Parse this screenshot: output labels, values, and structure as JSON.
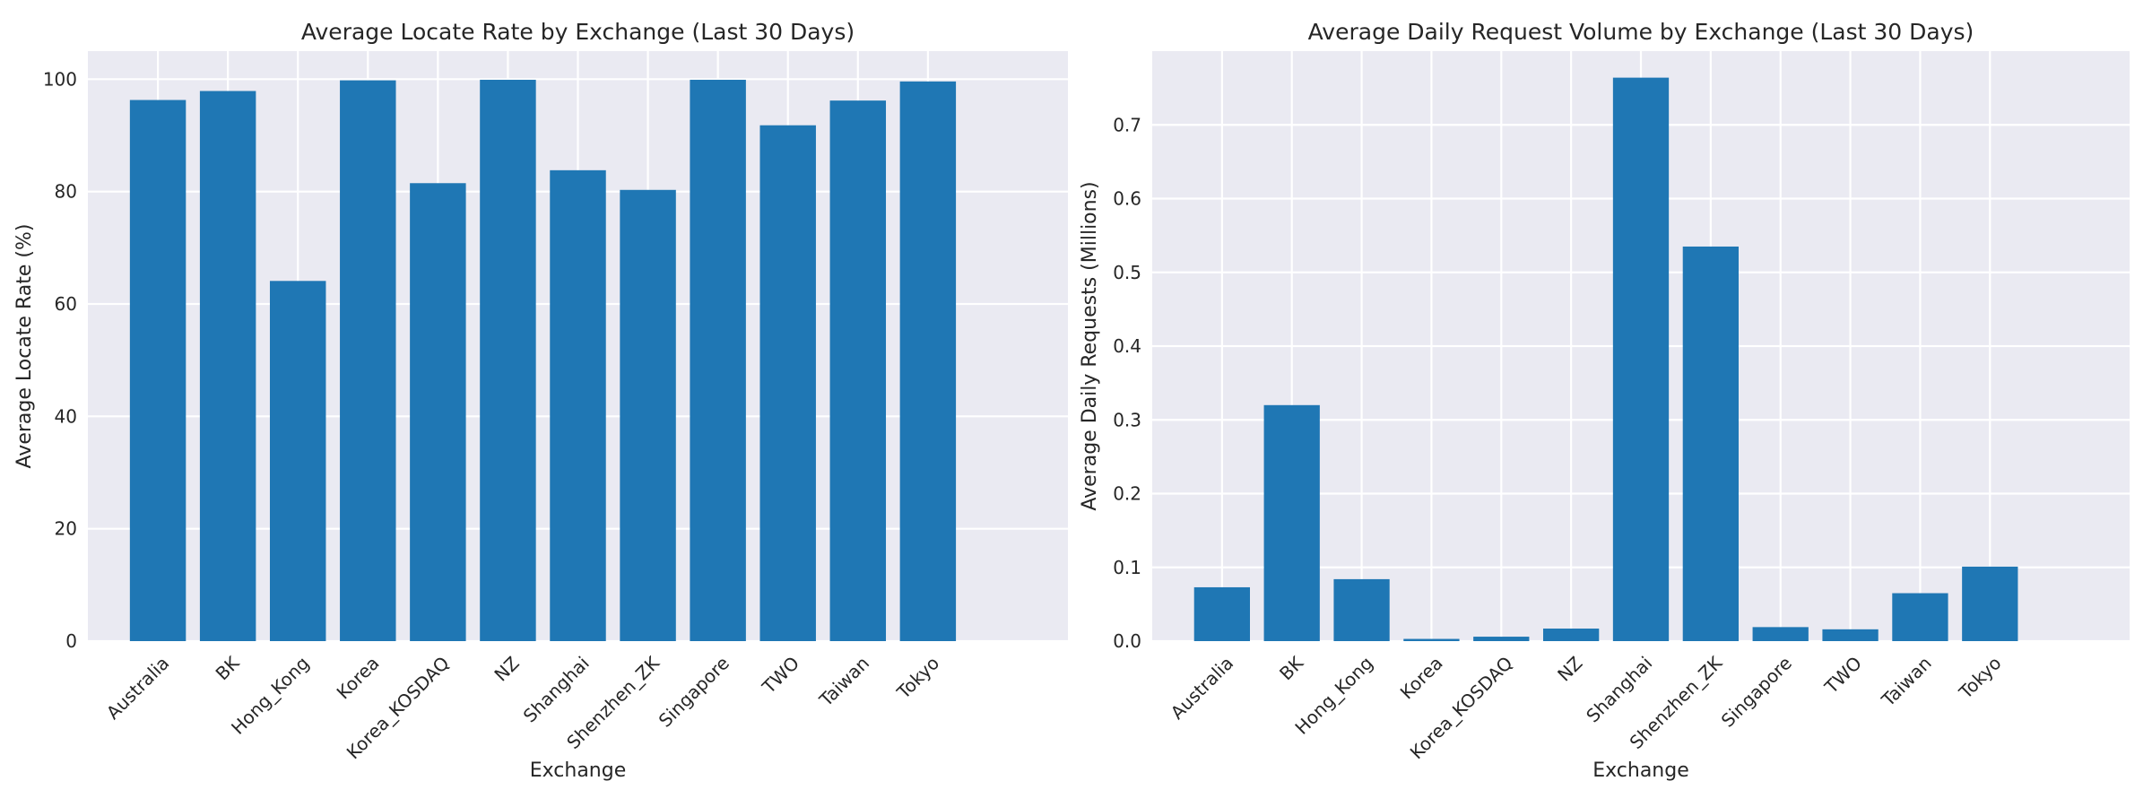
{
  "figure": {
    "background": "#ffffff"
  },
  "style": {
    "bar_color": "#1f77b4",
    "plot_background": "#eaeaf2",
    "grid_color": "#ffffff",
    "text_color": "#262626"
  },
  "chart_data": [
    {
      "type": "bar",
      "title": "Average Locate Rate by Exchange (Last 30 Days)",
      "xlabel": "Exchange",
      "ylabel": "Average Locate Rate (%)",
      "categories": [
        "Australia",
        "BK",
        "Hong_Kong",
        "Korea",
        "Korea_KOSDAQ",
        "NZ",
        "Shanghai",
        "Shenzhen_ZK",
        "Singapore",
        "TWO",
        "Taiwan",
        "Tokyo"
      ],
      "values": [
        96.3,
        97.9,
        64.1,
        99.8,
        81.5,
        99.9,
        83.8,
        80.3,
        99.9,
        91.8,
        96.2,
        99.6
      ],
      "ylim": [
        0,
        105
      ],
      "yticks": [
        0,
        20,
        40,
        60,
        80,
        100
      ],
      "ytick_labels": [
        "0",
        "20",
        "40",
        "60",
        "80",
        "100"
      ],
      "grid": true,
      "legend": "none",
      "bar_color": "#1f77b4"
    },
    {
      "type": "bar",
      "title": "Average Daily Request Volume by Exchange (Last 30 Days)",
      "xlabel": "Exchange",
      "ylabel": "Average Daily Requests (Millions)",
      "categories": [
        "Australia",
        "BK",
        "Hong_Kong",
        "Korea",
        "Korea_KOSDAQ",
        "NZ",
        "Shanghai",
        "Shenzhen_ZK",
        "Singapore",
        "TWO",
        "Taiwan",
        "Tokyo"
      ],
      "values": [
        0.073,
        0.32,
        0.084,
        0.003,
        0.006,
        0.017,
        0.764,
        0.535,
        0.019,
        0.016,
        0.065,
        0.101
      ],
      "ylim": [
        0,
        0.8
      ],
      "yticks": [
        0.0,
        0.1,
        0.2,
        0.3,
        0.4,
        0.5,
        0.6,
        0.7
      ],
      "ytick_labels": [
        "0.0",
        "0.1",
        "0.2",
        "0.3",
        "0.4",
        "0.5",
        "0.6",
        "0.7"
      ],
      "grid": true,
      "legend": "none",
      "bar_color": "#1f77b4"
    }
  ]
}
